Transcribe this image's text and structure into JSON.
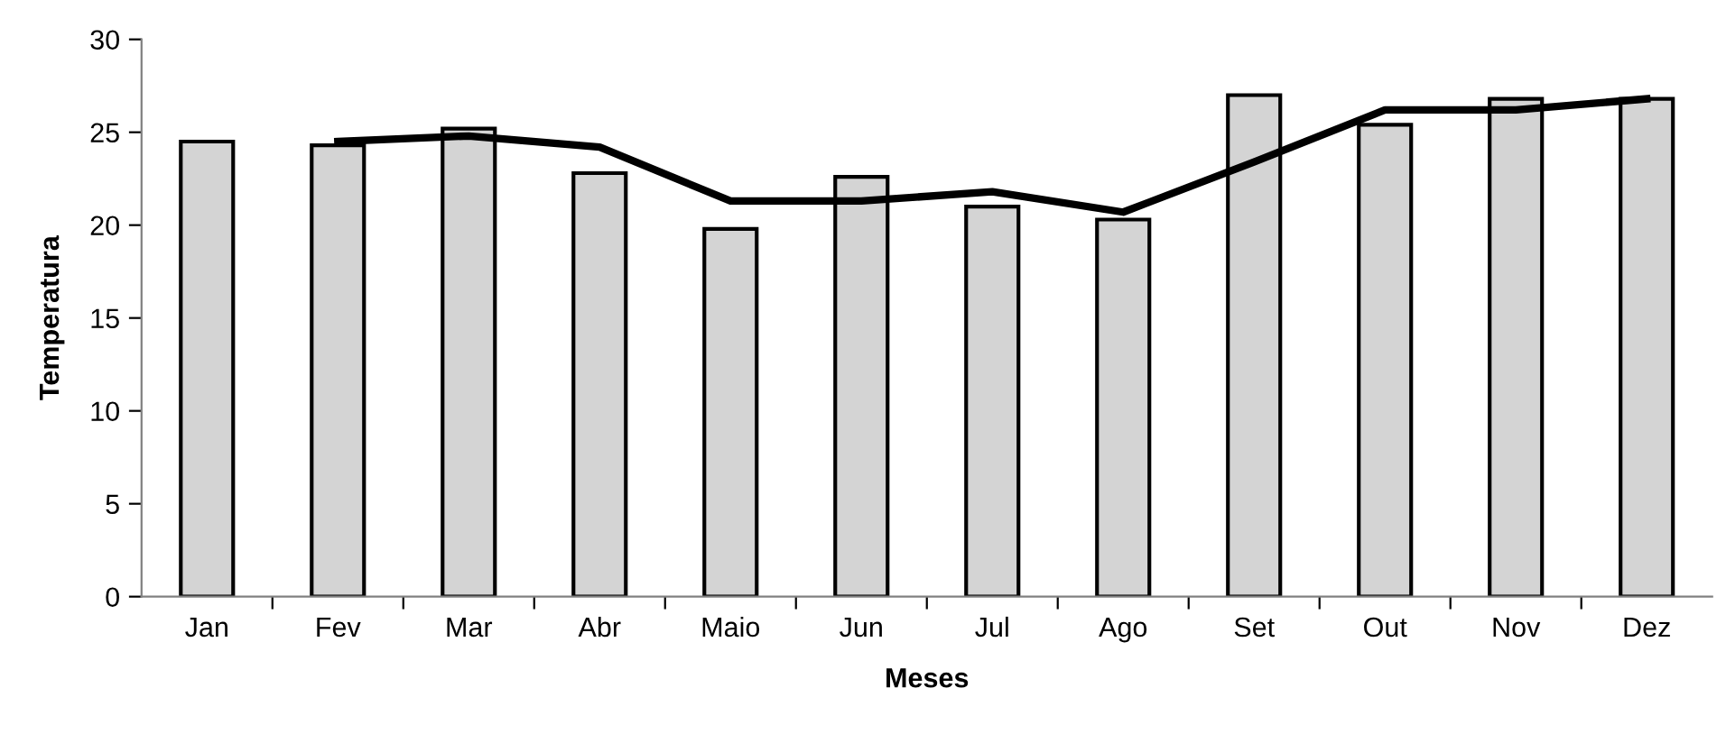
{
  "chart_data": {
    "type": "bar",
    "xlabel": "Meses",
    "ylabel": "Temperatura",
    "categories": [
      "Jan",
      "Fev",
      "Mar",
      "Abr",
      "Maio",
      "Jun",
      "Jul",
      "Ago",
      "Set",
      "Out",
      "Nov",
      "Dez"
    ],
    "series": [
      {
        "color": "#d4d4d4",
        "values": [
          24.5,
          24.3,
          25.2,
          22.8,
          19.8,
          22.6,
          21.0,
          20.3,
          27.0,
          25.4,
          26.8,
          26.8
        ]
      },
      {
        "type": "line",
        "color": "#000000",
        "values": [
          null,
          24.5,
          24.8,
          24.2,
          21.3,
          21.3,
          21.8,
          20.7,
          23.4,
          26.2,
          26.2,
          26.8
        ]
      }
    ],
    "ylim": [
      0,
      30
    ],
    "yticks": [
      0,
      5,
      10,
      15,
      20,
      25,
      30
    ],
    "grid": false,
    "legend": false
  }
}
